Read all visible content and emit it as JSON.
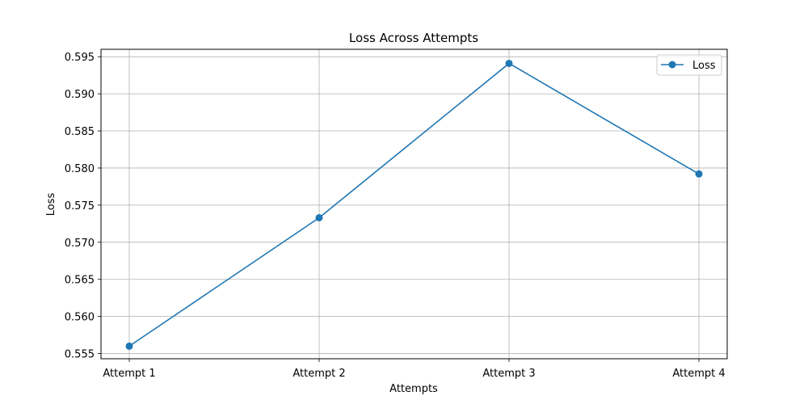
{
  "chart_data": {
    "type": "line",
    "title": "Loss Across Attempts",
    "xlabel": "Attempts",
    "ylabel": "Loss",
    "categories": [
      "Attempt 1",
      "Attempt 2",
      "Attempt 3",
      "Attempt 4"
    ],
    "series": [
      {
        "name": "Loss",
        "values": [
          0.556,
          0.5733,
          0.5941,
          0.5792
        ],
        "color": "#1f77b4",
        "marker": "circle"
      }
    ],
    "ylim": [
      0.5543,
      0.596
    ],
    "yticks": [
      "0.555",
      "0.560",
      "0.565",
      "0.570",
      "0.575",
      "0.580",
      "0.585",
      "0.590",
      "0.595"
    ],
    "grid": true,
    "legend_position": "top-right"
  }
}
